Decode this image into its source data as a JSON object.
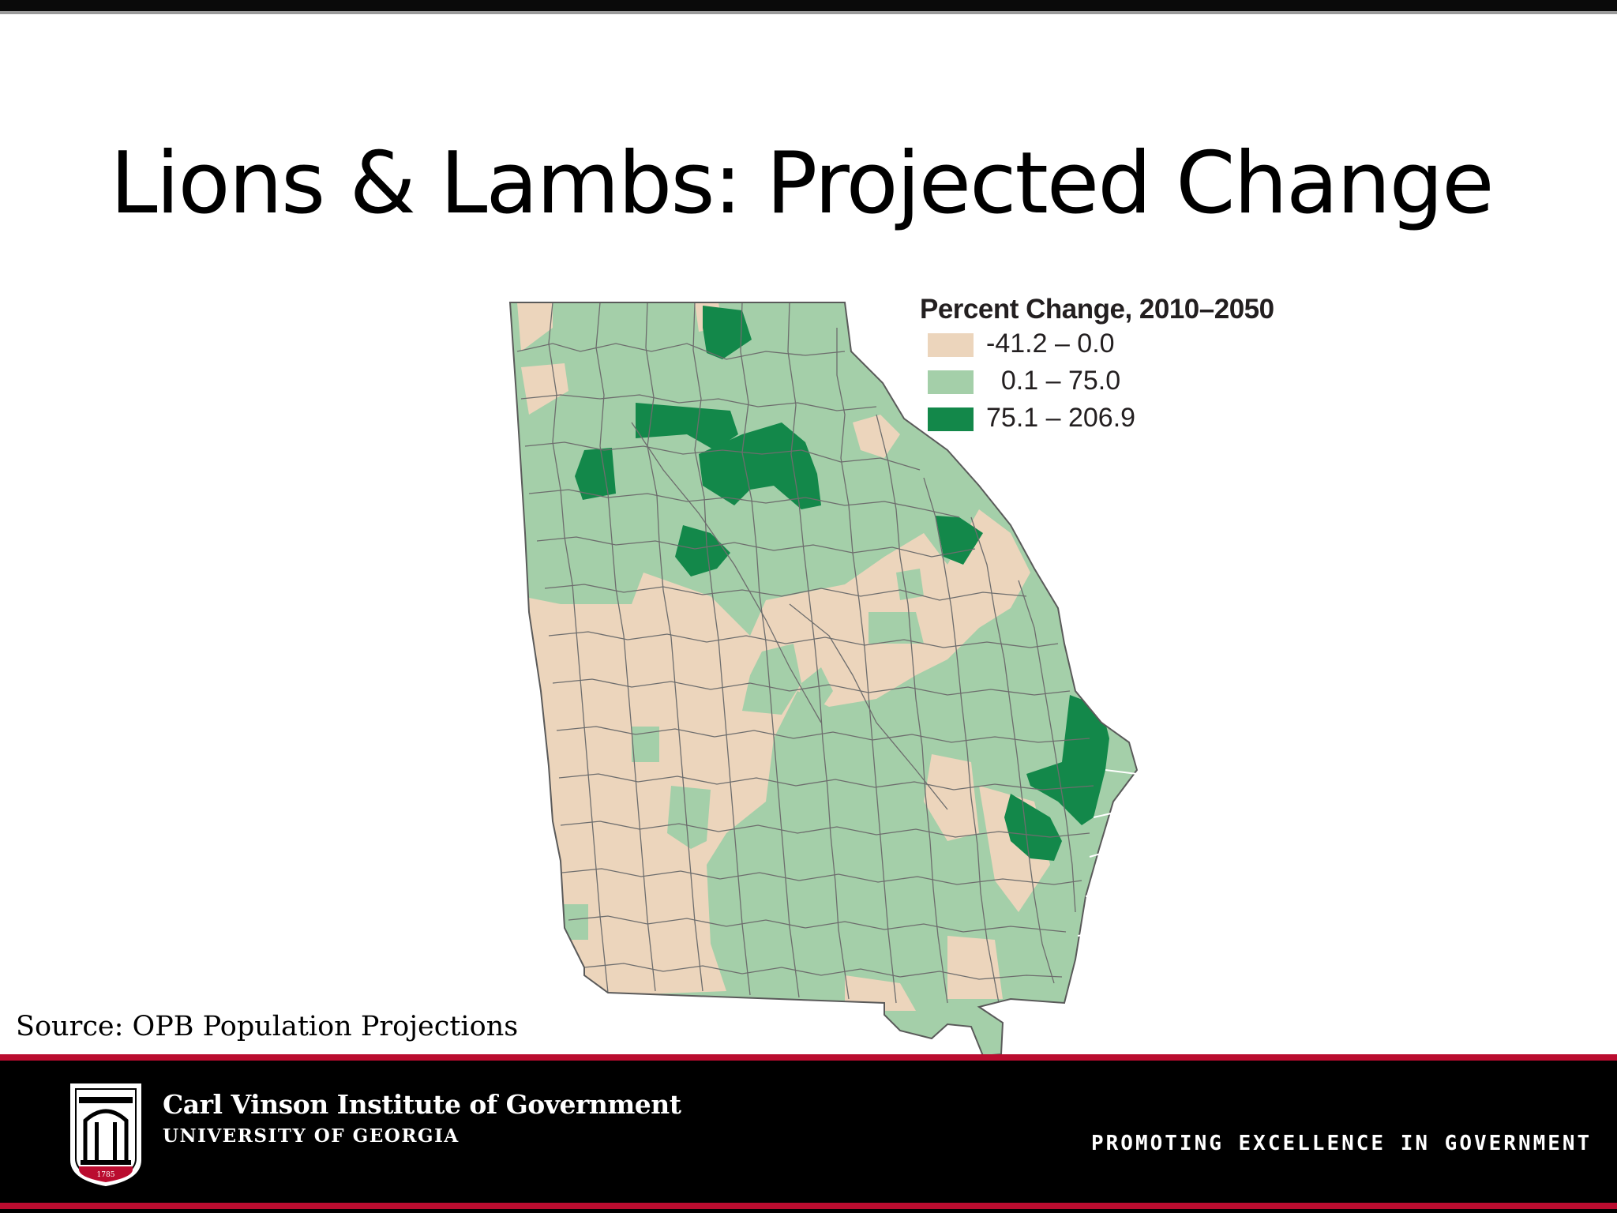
{
  "slide": {
    "title": "Lions & Lambs: Projected Change",
    "source": "Source: OPB Population Projections"
  },
  "map": {
    "region": "Georgia counties",
    "legend": {
      "title": "Percent Change, 2010–2050",
      "items": [
        {
          "label": "-41.2 – 0.0",
          "color": "#ecd5bc"
        },
        {
          "label": "  0.1 – 75.0",
          "color": "#a4cfa9"
        },
        {
          "label": "75.1 – 206.9",
          "color": "#13884a"
        }
      ]
    },
    "colors": {
      "border": "#5a5a5a",
      "decline": "#ecd5bc",
      "moderate": "#a4cfa9",
      "high": "#13884a"
    }
  },
  "footer": {
    "institute": "Carl Vinson Institute of Government",
    "university": "UNIVERSITY OF GEORGIA",
    "tagline": "PROMOTING EXCELLENCE IN GOVERNMENT",
    "logo_icon": "arch-shield-icon",
    "logo_year": "1785",
    "colors": {
      "bar": "#000000",
      "accent": "#ba0c2f"
    }
  }
}
